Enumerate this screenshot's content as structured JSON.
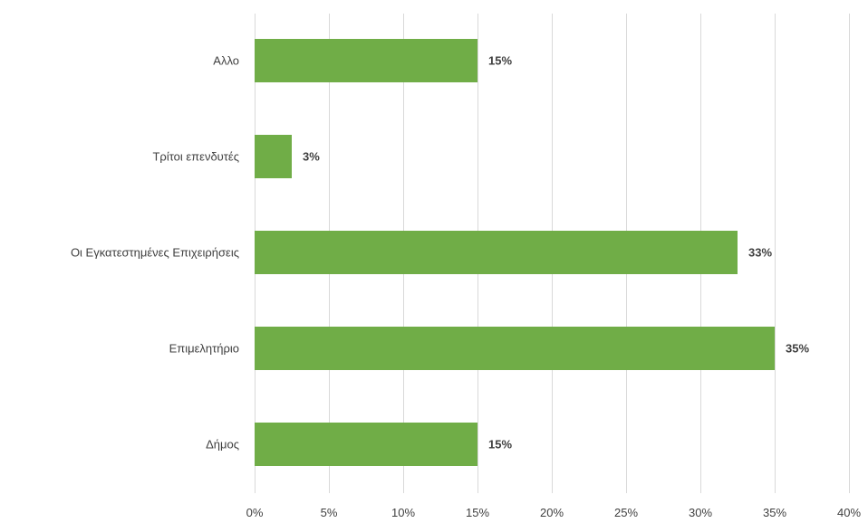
{
  "chart_data": {
    "type": "bar",
    "orientation": "horizontal",
    "categories": [
      "Αλλο",
      "Τρίτοι επενδυτές",
      "Οι Εγκατεστημένες Επιχειρήσεις",
      "Επιμελητήριο",
      "Δήμος"
    ],
    "values": [
      15,
      2.5,
      32.5,
      35,
      15
    ],
    "data_labels": [
      "15%",
      "3%",
      "33%",
      "35%",
      "15%"
    ],
    "x_ticks": [
      "0%",
      "5%",
      "10%",
      "15%",
      "20%",
      "25%",
      "30%",
      "35%",
      "40%"
    ],
    "xlim": [
      0,
      40
    ],
    "grid": true,
    "legend": "none",
    "title": "",
    "xlabel": "",
    "ylabel": "",
    "colors": {
      "bar": "#70ad47",
      "grid": "#d9d9d9",
      "text": "#404040"
    }
  }
}
